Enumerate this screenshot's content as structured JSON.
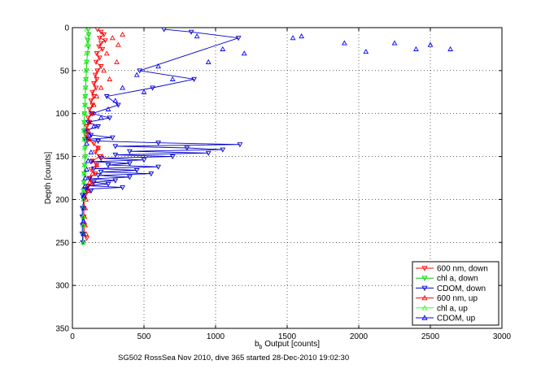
{
  "chart_data": {
    "type": "scatter",
    "title": "",
    "xlabel_main": "b",
    "xlabel_sub": "b",
    "xlabel_rest": " Output [counts]",
    "ylabel": "Depth [counts]",
    "xlim": [
      0,
      3000
    ],
    "ylim": [
      0,
      350
    ],
    "y_reversed": true,
    "x_ticks": [
      "0",
      "500",
      "1000",
      "1500",
      "2000",
      "2500",
      "3000"
    ],
    "y_ticks": [
      "0",
      "50",
      "100",
      "150",
      "200",
      "250",
      "300",
      "350"
    ],
    "grid": "dotted",
    "legend_position": "bottom-right",
    "caption": "SG502 RossSea Nov 2010, dive 365 started 28-Dec-2010 19:02:30",
    "series": [
      {
        "name": "600 nm, down",
        "color": "#ff0000",
        "marker": "triangle-down",
        "connect": true,
        "points": [
          [
            175,
            2
          ],
          [
            200,
            5
          ],
          [
            220,
            8
          ],
          [
            190,
            12
          ],
          [
            230,
            15
          ],
          [
            200,
            18
          ],
          [
            185,
            22
          ],
          [
            210,
            25
          ],
          [
            170,
            30
          ],
          [
            190,
            35
          ],
          [
            165,
            40
          ],
          [
            200,
            45
          ],
          [
            175,
            50
          ],
          [
            160,
            55
          ],
          [
            170,
            60
          ],
          [
            150,
            65
          ],
          [
            165,
            70
          ],
          [
            140,
            75
          ],
          [
            150,
            80
          ],
          [
            130,
            85
          ],
          [
            140,
            90
          ],
          [
            120,
            95
          ],
          [
            130,
            100
          ],
          [
            110,
            105
          ],
          [
            120,
            110
          ],
          [
            100,
            115
          ],
          [
            105,
            120
          ],
          [
            95,
            125
          ],
          [
            110,
            130
          ],
          [
            150,
            135
          ],
          [
            180,
            140
          ],
          [
            160,
            145
          ],
          [
            190,
            150
          ],
          [
            140,
            155
          ],
          [
            170,
            160
          ],
          [
            130,
            165
          ],
          [
            160,
            170
          ],
          [
            120,
            175
          ],
          [
            140,
            180
          ],
          [
            110,
            185
          ],
          [
            100,
            190
          ],
          [
            90,
            195
          ],
          [
            85,
            200
          ],
          [
            80,
            210
          ],
          [
            80,
            220
          ],
          [
            85,
            230
          ],
          [
            80,
            240
          ],
          [
            100,
            245
          ]
        ]
      },
      {
        "name": "chl a, down",
        "color": "#00cc00",
        "marker": "triangle-down",
        "connect": true,
        "points": [
          [
            110,
            2
          ],
          [
            115,
            8
          ],
          [
            108,
            15
          ],
          [
            112,
            22
          ],
          [
            105,
            30
          ],
          [
            100,
            40
          ],
          [
            98,
            50
          ],
          [
            95,
            60
          ],
          [
            92,
            70
          ],
          [
            90,
            80
          ],
          [
            88,
            90
          ],
          [
            85,
            100
          ],
          [
            82,
            110
          ],
          [
            80,
            120
          ],
          [
            85,
            130
          ],
          [
            88,
            140
          ],
          [
            90,
            150
          ],
          [
            85,
            160
          ],
          [
            82,
            170
          ],
          [
            80,
            180
          ],
          [
            78,
            190
          ],
          [
            78,
            200
          ],
          [
            76,
            210
          ],
          [
            75,
            220
          ],
          [
            76,
            230
          ],
          [
            75,
            240
          ],
          [
            76,
            250
          ]
        ]
      },
      {
        "name": "CDOM, down",
        "color": "#0000cc",
        "marker": "triangle-down",
        "connect": true,
        "points": [
          [
            640,
            2
          ],
          [
            830,
            5
          ],
          [
            1160,
            12
          ],
          [
            470,
            50
          ],
          [
            850,
            60
          ],
          [
            560,
            70
          ],
          [
            240,
            80
          ],
          [
            320,
            90
          ],
          [
            140,
            100
          ],
          [
            260,
            105
          ],
          [
            110,
            110
          ],
          [
            180,
            115
          ],
          [
            90,
            120
          ],
          [
            130,
            125
          ],
          [
            280,
            128
          ],
          [
            90,
            130
          ],
          [
            180,
            132
          ],
          [
            600,
            134
          ],
          [
            1170,
            136
          ],
          [
            300,
            138
          ],
          [
            800,
            140
          ],
          [
            1050,
            142
          ],
          [
            400,
            144
          ],
          [
            950,
            146
          ],
          [
            300,
            148
          ],
          [
            700,
            150
          ],
          [
            200,
            152
          ],
          [
            500,
            154
          ],
          [
            130,
            156
          ],
          [
            400,
            158
          ],
          [
            250,
            160
          ],
          [
            600,
            162
          ],
          [
            150,
            164
          ],
          [
            450,
            166
          ],
          [
            200,
            168
          ],
          [
            550,
            170
          ],
          [
            180,
            172
          ],
          [
            400,
            174
          ],
          [
            120,
            176
          ],
          [
            300,
            178
          ],
          [
            150,
            180
          ],
          [
            250,
            182
          ],
          [
            110,
            184
          ],
          [
            350,
            186
          ],
          [
            90,
            188
          ],
          [
            130,
            190
          ],
          [
            70,
            195
          ],
          [
            80,
            200
          ],
          [
            70,
            210
          ],
          [
            68,
            220
          ],
          [
            70,
            230
          ],
          [
            68,
            240
          ],
          [
            72,
            250
          ]
        ]
      },
      {
        "name": "600 nm, up",
        "color": "#ff0000",
        "marker": "triangle-up",
        "connect": false,
        "points": [
          [
            350,
            8
          ],
          [
            280,
            12
          ],
          [
            320,
            20
          ],
          [
            240,
            30
          ],
          [
            310,
            40
          ],
          [
            220,
            50
          ],
          [
            260,
            60
          ],
          [
            200,
            70
          ],
          [
            170,
            80
          ],
          [
            150,
            90
          ],
          [
            140,
            100
          ],
          [
            120,
            110
          ],
          [
            110,
            120
          ],
          [
            115,
            130
          ],
          [
            180,
            140
          ],
          [
            210,
            150
          ],
          [
            170,
            160
          ],
          [
            140,
            170
          ],
          [
            120,
            180
          ],
          [
            110,
            190
          ],
          [
            95,
            200
          ],
          [
            90,
            210
          ],
          [
            85,
            220
          ],
          [
            88,
            230
          ],
          [
            95,
            240
          ]
        ]
      },
      {
        "name": "chl a, up",
        "color": "#33ff33",
        "marker": "triangle-up",
        "connect": false,
        "points": [
          [
            100,
            2
          ],
          [
            102,
            10
          ],
          [
            100,
            20
          ],
          [
            98,
            30
          ],
          [
            96,
            40
          ],
          [
            94,
            50
          ],
          [
            92,
            60
          ],
          [
            90,
            70
          ],
          [
            88,
            80
          ],
          [
            86,
            90
          ],
          [
            84,
            100
          ],
          [
            82,
            110
          ],
          [
            80,
            120
          ],
          [
            82,
            130
          ],
          [
            84,
            140
          ],
          [
            86,
            150
          ],
          [
            84,
            160
          ],
          [
            82,
            170
          ],
          [
            80,
            180
          ],
          [
            78,
            190
          ],
          [
            77,
            200
          ],
          [
            76,
            210
          ],
          [
            76,
            220
          ],
          [
            75,
            230
          ],
          [
            75,
            240
          ],
          [
            76,
            250
          ]
        ]
      },
      {
        "name": "CDOM, up",
        "color": "#0000ff",
        "marker": "triangle-up",
        "connect": false,
        "points": [
          [
            1540,
            12
          ],
          [
            1600,
            10
          ],
          [
            1900,
            18
          ],
          [
            2050,
            28
          ],
          [
            2250,
            18
          ],
          [
            2400,
            25
          ],
          [
            2500,
            20
          ],
          [
            2640,
            25
          ],
          [
            1200,
            30
          ],
          [
            870,
            10
          ],
          [
            950,
            40
          ],
          [
            1050,
            25
          ],
          [
            600,
            45
          ],
          [
            450,
            55
          ],
          [
            700,
            60
          ],
          [
            350,
            70
          ],
          [
            500,
            75
          ],
          [
            300,
            85
          ],
          [
            250,
            95
          ],
          [
            200,
            105
          ],
          [
            150,
            115
          ],
          [
            120,
            125
          ],
          [
            100,
            135
          ],
          [
            130,
            145
          ],
          [
            110,
            155
          ],
          [
            100,
            165
          ],
          [
            90,
            175
          ],
          [
            85,
            185
          ],
          [
            80,
            195
          ],
          [
            80,
            210
          ],
          [
            78,
            225
          ],
          [
            78,
            240
          ]
        ]
      }
    ]
  }
}
